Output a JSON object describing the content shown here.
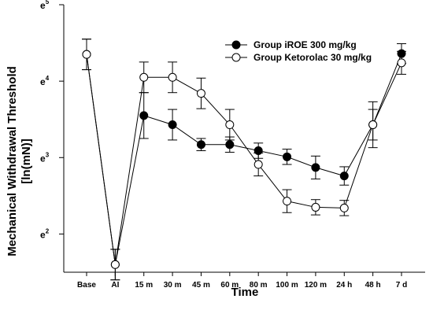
{
  "chart_data": {
    "type": "line",
    "title": "",
    "xlabel": "Time",
    "ylabel_line1": "Mechanical Withdrawal Threshold",
    "ylabel_line2": "[ln(mN)]",
    "categories": [
      "Base",
      "AI",
      "15 m",
      "30 m",
      "45 m",
      "60 m",
      "80 m",
      "100 m",
      "120 m",
      "24 h",
      "48 h",
      "7 d"
    ],
    "y_scale": "ln",
    "ylim": [
      1.5,
      5
    ],
    "y_ticks": [
      {
        "value": 2,
        "base": "e",
        "exp": "2"
      },
      {
        "value": 3,
        "base": "e",
        "exp": "3"
      },
      {
        "value": 4,
        "base": "e",
        "exp": "4"
      },
      {
        "value": 5,
        "base": "e",
        "exp": "5"
      }
    ],
    "legend_position": "top-right",
    "grid": false,
    "series": [
      {
        "name": "Group iROE 300 mg/kg",
        "marker": "filled-circle",
        "values": [
          4.35,
          1.6,
          3.55,
          3.43,
          3.17,
          3.17,
          3.09,
          3.01,
          2.87,
          2.76,
          3.43,
          4.36
        ],
        "errors": [
          0.2,
          0.2,
          0.3,
          0.2,
          0.08,
          0.1,
          0.1,
          0.1,
          0.15,
          0.12,
          0.3,
          0.13
        ]
      },
      {
        "name": "Group Ketorolac 30 mg/kg",
        "marker": "open-circle",
        "values": [
          4.35,
          1.6,
          4.05,
          4.05,
          3.84,
          3.43,
          2.91,
          2.43,
          2.35,
          2.34,
          3.43,
          4.24
        ],
        "errors": [
          0.2,
          0.2,
          0.2,
          0.2,
          0.2,
          0.2,
          0.15,
          0.15,
          0.1,
          0.1,
          0.2,
          0.15
        ]
      }
    ]
  }
}
